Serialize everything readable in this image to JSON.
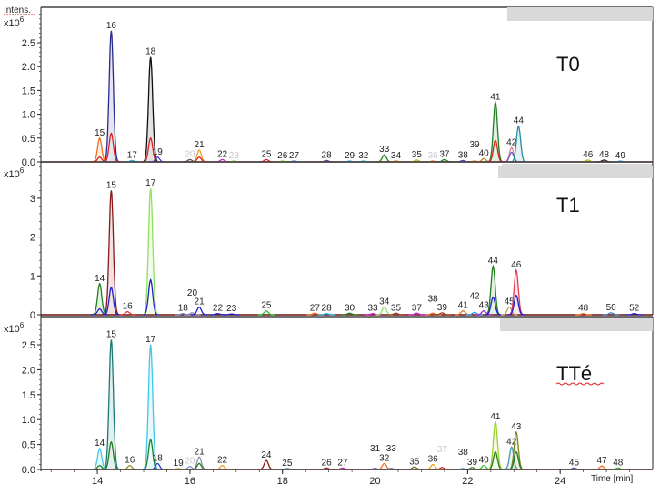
{
  "y_axis_label": "Intens.",
  "y_multiplier": "x10",
  "y_multiplier_exp": "6",
  "x_axis_label": "Time [min]",
  "chart_data": {
    "type": "line",
    "xlabel": "Time [min]",
    "ylabel": "Intens.",
    "xlim": [
      12.78,
      26.0
    ],
    "x_ticks": [
      14,
      16,
      18,
      20,
      22,
      24
    ],
    "grid": false,
    "panels": [
      {
        "title": "T0",
        "ylim": [
          0,
          3.0
        ],
        "y_ticks": [
          "0.0",
          "0.5",
          "1.0",
          "1.5",
          "2.0",
          "2.5"
        ],
        "y_tick_values": [
          0,
          0.5,
          1.0,
          1.5,
          2.0,
          2.5
        ],
        "peaks": [
          {
            "label": "15",
            "rt": 14.05,
            "traces": [
              [
                "#f07020",
                0.5
              ],
              [
                "#e02020",
                0.1
              ]
            ]
          },
          {
            "label": "16",
            "rt": 14.3,
            "traces": [
              [
                "#2a2a90",
                2.75
              ],
              [
                "#e02020",
                0.6
              ]
            ]
          },
          {
            "label": "17",
            "rt": 14.75,
            "traces": [
              [
                "#30b0e0",
                0.03
              ]
            ]
          },
          {
            "label": "18",
            "rt": 15.15,
            "traces": [
              [
                "#111111",
                2.2
              ],
              [
                "#e02020",
                0.5
              ]
            ]
          },
          {
            "label": "19",
            "rt": 15.3,
            "traces": [
              [
                "#4040e0",
                0.1
              ]
            ]
          },
          {
            "label": "20",
            "rt": 16.0,
            "faint": true,
            "traces": [
              [
                "#555555",
                0.05
              ]
            ]
          },
          {
            "label": "21",
            "rt": 16.2,
            "traces": [
              [
                "#f0a020",
                0.25
              ],
              [
                "#e02020",
                0.1
              ]
            ]
          },
          {
            "label": "22",
            "rt": 16.7,
            "traces": [
              [
                "#d020d0",
                0.05
              ]
            ]
          },
          {
            "label": "23",
            "rt": 16.95,
            "faint": true,
            "traces": [
              [
                "#90d040",
                0.02
              ]
            ]
          },
          {
            "label": "25",
            "rt": 17.65,
            "traces": [
              [
                "#e02020",
                0.05
              ]
            ]
          },
          {
            "label": "26",
            "rt": 18.0,
            "traces": [
              [
                "#90d040",
                0.02
              ]
            ]
          },
          {
            "label": "27",
            "rt": 18.25,
            "traces": [
              [
                "#4080c0",
                0.02
              ]
            ]
          },
          {
            "label": "28",
            "rt": 18.95,
            "traces": [
              [
                "#6040a0",
                0.03
              ]
            ]
          },
          {
            "label": "29",
            "rt": 19.45,
            "traces": [
              [
                "#30b0e0",
                0.02
              ]
            ]
          },
          {
            "label": "32",
            "rt": 19.75,
            "traces": [
              [
                "#30b0e0",
                0.02
              ]
            ]
          },
          {
            "label": "33",
            "rt": 20.2,
            "traces": [
              [
                "#208020",
                0.15
              ]
            ]
          },
          {
            "label": "34",
            "rt": 20.45,
            "traces": [
              [
                "#f07020",
                0.02
              ]
            ]
          },
          {
            "label": "35",
            "rt": 20.9,
            "traces": [
              [
                "#b0c020",
                0.04
              ]
            ]
          },
          {
            "label": "36",
            "rt": 21.25,
            "faint": true,
            "traces": [
              [
                "#f07020",
                0.02
              ]
            ]
          },
          {
            "label": "37",
            "rt": 21.5,
            "traces": [
              [
                "#208020",
                0.05
              ]
            ]
          },
          {
            "label": "38",
            "rt": 21.9,
            "traces": [
              [
                "#6040c0",
                0.03
              ]
            ]
          },
          {
            "label": "39",
            "rt": 22.15,
            "traces": [
              [
                "#f07020",
                0.02
              ]
            ]
          },
          {
            "label": "40",
            "rt": 22.35,
            "traces": [
              [
                "#c08020",
                0.07
              ]
            ]
          },
          {
            "label": "41",
            "rt": 22.6,
            "traces": [
              [
                "#208020",
                1.25
              ],
              [
                "#e02020",
                0.45
              ]
            ]
          },
          {
            "label": "42",
            "rt": 22.95,
            "traces": [
              [
                "#e08090",
                0.3
              ],
              [
                "#6060c0",
                0.2
              ]
            ]
          },
          {
            "label": "44",
            "rt": 23.1,
            "traces": [
              [
                "#2090a0",
                0.75
              ]
            ]
          },
          {
            "label": "46",
            "rt": 24.6,
            "traces": [
              [
                "#b0c020",
                0.04
              ]
            ]
          },
          {
            "label": "48",
            "rt": 24.95,
            "traces": [
              [
                "#222222",
                0.04
              ]
            ]
          },
          {
            "label": "49",
            "rt": 25.3,
            "traces": [
              [
                "#30b0e0",
                0.02
              ]
            ]
          }
        ]
      },
      {
        "title": "T1",
        "ylim": [
          0,
          3.8
        ],
        "y_ticks": [
          "0",
          "1",
          "2",
          "3"
        ],
        "y_tick_values": [
          0,
          1,
          2,
          3
        ],
        "peaks": [
          {
            "label": "14",
            "rt": 14.05,
            "traces": [
              [
                "#208020",
                0.8
              ],
              [
                "#2020d0",
                0.15
              ]
            ]
          },
          {
            "label": "15",
            "rt": 14.3,
            "traces": [
              [
                "#8a1a1a",
                3.2
              ],
              [
                "#2020d0",
                0.7
              ]
            ]
          },
          {
            "label": "16",
            "rt": 14.65,
            "traces": [
              [
                "#e03030",
                0.08
              ]
            ]
          },
          {
            "label": "17",
            "rt": 15.15,
            "traces": [
              [
                "#90e060",
                3.25
              ],
              [
                "#2020d0",
                0.9
              ]
            ]
          },
          {
            "label": "18",
            "rt": 15.85,
            "traces": [
              [
                "#8080c0",
                0.03
              ]
            ]
          },
          {
            "label": "20",
            "rt": 16.05,
            "traces": [
              [
                "#8080c0",
                0.05
              ]
            ]
          },
          {
            "label": "21",
            "rt": 16.2,
            "traces": [
              [
                "#2020d0",
                0.2
              ]
            ]
          },
          {
            "label": "22",
            "rt": 16.6,
            "traces": [
              [
                "#2020d0",
                0.03
              ]
            ]
          },
          {
            "label": "23",
            "rt": 16.9,
            "traces": [
              [
                "#2020d0",
                0.02
              ]
            ]
          },
          {
            "label": "25",
            "rt": 17.65,
            "traces": [
              [
                "#30c030",
                0.1
              ]
            ]
          },
          {
            "label": "27",
            "rt": 18.7,
            "traces": [
              [
                "#f07020",
                0.04
              ]
            ]
          },
          {
            "label": "28",
            "rt": 18.95,
            "traces": [
              [
                "#30b0e0",
                0.03
              ]
            ]
          },
          {
            "label": "30",
            "rt": 19.45,
            "traces": [
              [
                "#208020",
                0.04
              ]
            ]
          },
          {
            "label": "33",
            "rt": 19.95,
            "traces": [
              [
                "#d020d0",
                0.03
              ]
            ]
          },
          {
            "label": "34",
            "rt": 20.2,
            "traces": [
              [
                "#90e060",
                0.2
              ]
            ]
          },
          {
            "label": "35",
            "rt": 20.45,
            "traces": [
              [
                "#a04020",
                0.04
              ]
            ]
          },
          {
            "label": "37",
            "rt": 20.9,
            "traces": [
              [
                "#d020d0",
                0.04
              ]
            ]
          },
          {
            "label": "38",
            "rt": 21.25,
            "traces": [
              [
                "#f07020",
                0.04
              ]
            ]
          },
          {
            "label": "39",
            "rt": 21.45,
            "traces": [
              [
                "#a04020",
                0.05
              ]
            ]
          },
          {
            "label": "41",
            "rt": 21.9,
            "traces": [
              [
                "#f07020",
                0.1
              ]
            ]
          },
          {
            "label": "42",
            "rt": 22.15,
            "traces": [
              [
                "#30a0e0",
                0.06
              ]
            ]
          },
          {
            "label": "43",
            "rt": 22.35,
            "traces": [
              [
                "#a020d0",
                0.1
              ]
            ]
          },
          {
            "label": "44",
            "rt": 22.55,
            "traces": [
              [
                "#208020",
                1.25
              ],
              [
                "#2020d0",
                0.45
              ]
            ]
          },
          {
            "label": "45",
            "rt": 22.9,
            "traces": [
              [
                "#d0a070",
                0.2
              ]
            ]
          },
          {
            "label": "46",
            "rt": 23.05,
            "traces": [
              [
                "#e04050",
                1.15
              ],
              [
                "#2020d0",
                0.5
              ]
            ]
          },
          {
            "label": "48",
            "rt": 24.5,
            "traces": [
              [
                "#f07020",
                0.03
              ]
            ]
          },
          {
            "label": "50",
            "rt": 25.1,
            "traces": [
              [
                "#4080c0",
                0.05
              ]
            ]
          },
          {
            "label": "52",
            "rt": 25.6,
            "traces": [
              [
                "#2020d0",
                0.03
              ]
            ]
          }
        ]
      },
      {
        "title": "TTé",
        "ylim": [
          0,
          3.0
        ],
        "y_ticks": [
          "0.0",
          "0.5",
          "1.0",
          "1.5",
          "2.0",
          "2.5"
        ],
        "y_tick_values": [
          0,
          0.5,
          1.0,
          1.5,
          2.0,
          2.5
        ],
        "peaks": [
          {
            "label": "14",
            "rt": 14.05,
            "traces": [
              [
                "#40c8e8",
                0.42
              ],
              [
                "#208020",
                0.08
              ]
            ]
          },
          {
            "label": "15",
            "rt": 14.3,
            "traces": [
              [
                "#1a7a7a",
                2.6
              ],
              [
                "#208020",
                0.55
              ]
            ]
          },
          {
            "label": "16",
            "rt": 14.7,
            "traces": [
              [
                "#909020",
                0.08
              ]
            ]
          },
          {
            "label": "17",
            "rt": 15.15,
            "traces": [
              [
                "#40c8e8",
                2.5
              ],
              [
                "#208020",
                0.6
              ]
            ]
          },
          {
            "label": "18",
            "rt": 15.3,
            "traces": [
              [
                "#3040d0",
                0.12
              ]
            ]
          },
          {
            "label": "19",
            "rt": 15.75,
            "traces": [
              [
                "#c0c040",
                0.02
              ]
            ]
          },
          {
            "label": "20",
            "rt": 16.0,
            "faint": true,
            "traces": [
              [
                "#8090c0",
                0.06
              ]
            ]
          },
          {
            "label": "21",
            "rt": 16.2,
            "traces": [
              [
                "#9090b0",
                0.25
              ],
              [
                "#208020",
                0.12
              ]
            ]
          },
          {
            "label": "22",
            "rt": 16.7,
            "traces": [
              [
                "#f0a020",
                0.08
              ]
            ]
          },
          {
            "label": "24",
            "rt": 17.65,
            "traces": [
              [
                "#8a1a1a",
                0.18
              ]
            ]
          },
          {
            "label": "25",
            "rt": 18.1,
            "traces": [
              [
                "#30a0e0",
                0.02
              ]
            ]
          },
          {
            "label": "26",
            "rt": 18.95,
            "traces": [
              [
                "#a02020",
                0.03
              ]
            ]
          },
          {
            "label": "27",
            "rt": 19.3,
            "traces": [
              [
                "#d020d0",
                0.03
              ]
            ]
          },
          {
            "label": "31",
            "rt": 20.0,
            "traces": [
              [
                "#4040c0",
                0.02
              ]
            ]
          },
          {
            "label": "32",
            "rt": 20.2,
            "traces": [
              [
                "#f07020",
                0.12
              ]
            ]
          },
          {
            "label": "33",
            "rt": 20.35,
            "traces": [
              [
                "#4060c0",
                0.02
              ]
            ]
          },
          {
            "label": "35",
            "rt": 20.85,
            "traces": [
              [
                "#707020",
                0.05
              ]
            ]
          },
          {
            "label": "36",
            "rt": 21.25,
            "traces": [
              [
                "#f0a020",
                0.1
              ]
            ]
          },
          {
            "label": "37",
            "rt": 21.45,
            "faint": true,
            "traces": [
              [
                "#e03030",
                0.04
              ]
            ]
          },
          {
            "label": "38",
            "rt": 21.9,
            "traces": [
              [
                "#30a0e0",
                0.02
              ]
            ]
          },
          {
            "label": "39",
            "rt": 22.1,
            "traces": [
              [
                "#408040",
                0.04
              ]
            ]
          },
          {
            "label": "40",
            "rt": 22.35,
            "traces": [
              [
                "#30c030",
                0.08
              ]
            ]
          },
          {
            "label": "41",
            "rt": 22.6,
            "traces": [
              [
                "#a0d030",
                0.95
              ],
              [
                "#208020",
                0.35
              ]
            ]
          },
          {
            "label": "42",
            "rt": 22.95,
            "traces": [
              [
                "#40a0b0",
                0.45
              ]
            ]
          },
          {
            "label": "43",
            "rt": 23.05,
            "traces": [
              [
                "#808020",
                0.75
              ],
              [
                "#208020",
                0.35
              ]
            ]
          },
          {
            "label": "45",
            "rt": 24.3,
            "traces": [
              [
                "#4060c0",
                0.03
              ]
            ]
          },
          {
            "label": "47",
            "rt": 24.9,
            "traces": [
              [
                "#f07020",
                0.07
              ]
            ]
          },
          {
            "label": "48",
            "rt": 25.25,
            "traces": [
              [
                "#30c030",
                0.03
              ]
            ]
          }
        ]
      }
    ]
  }
}
